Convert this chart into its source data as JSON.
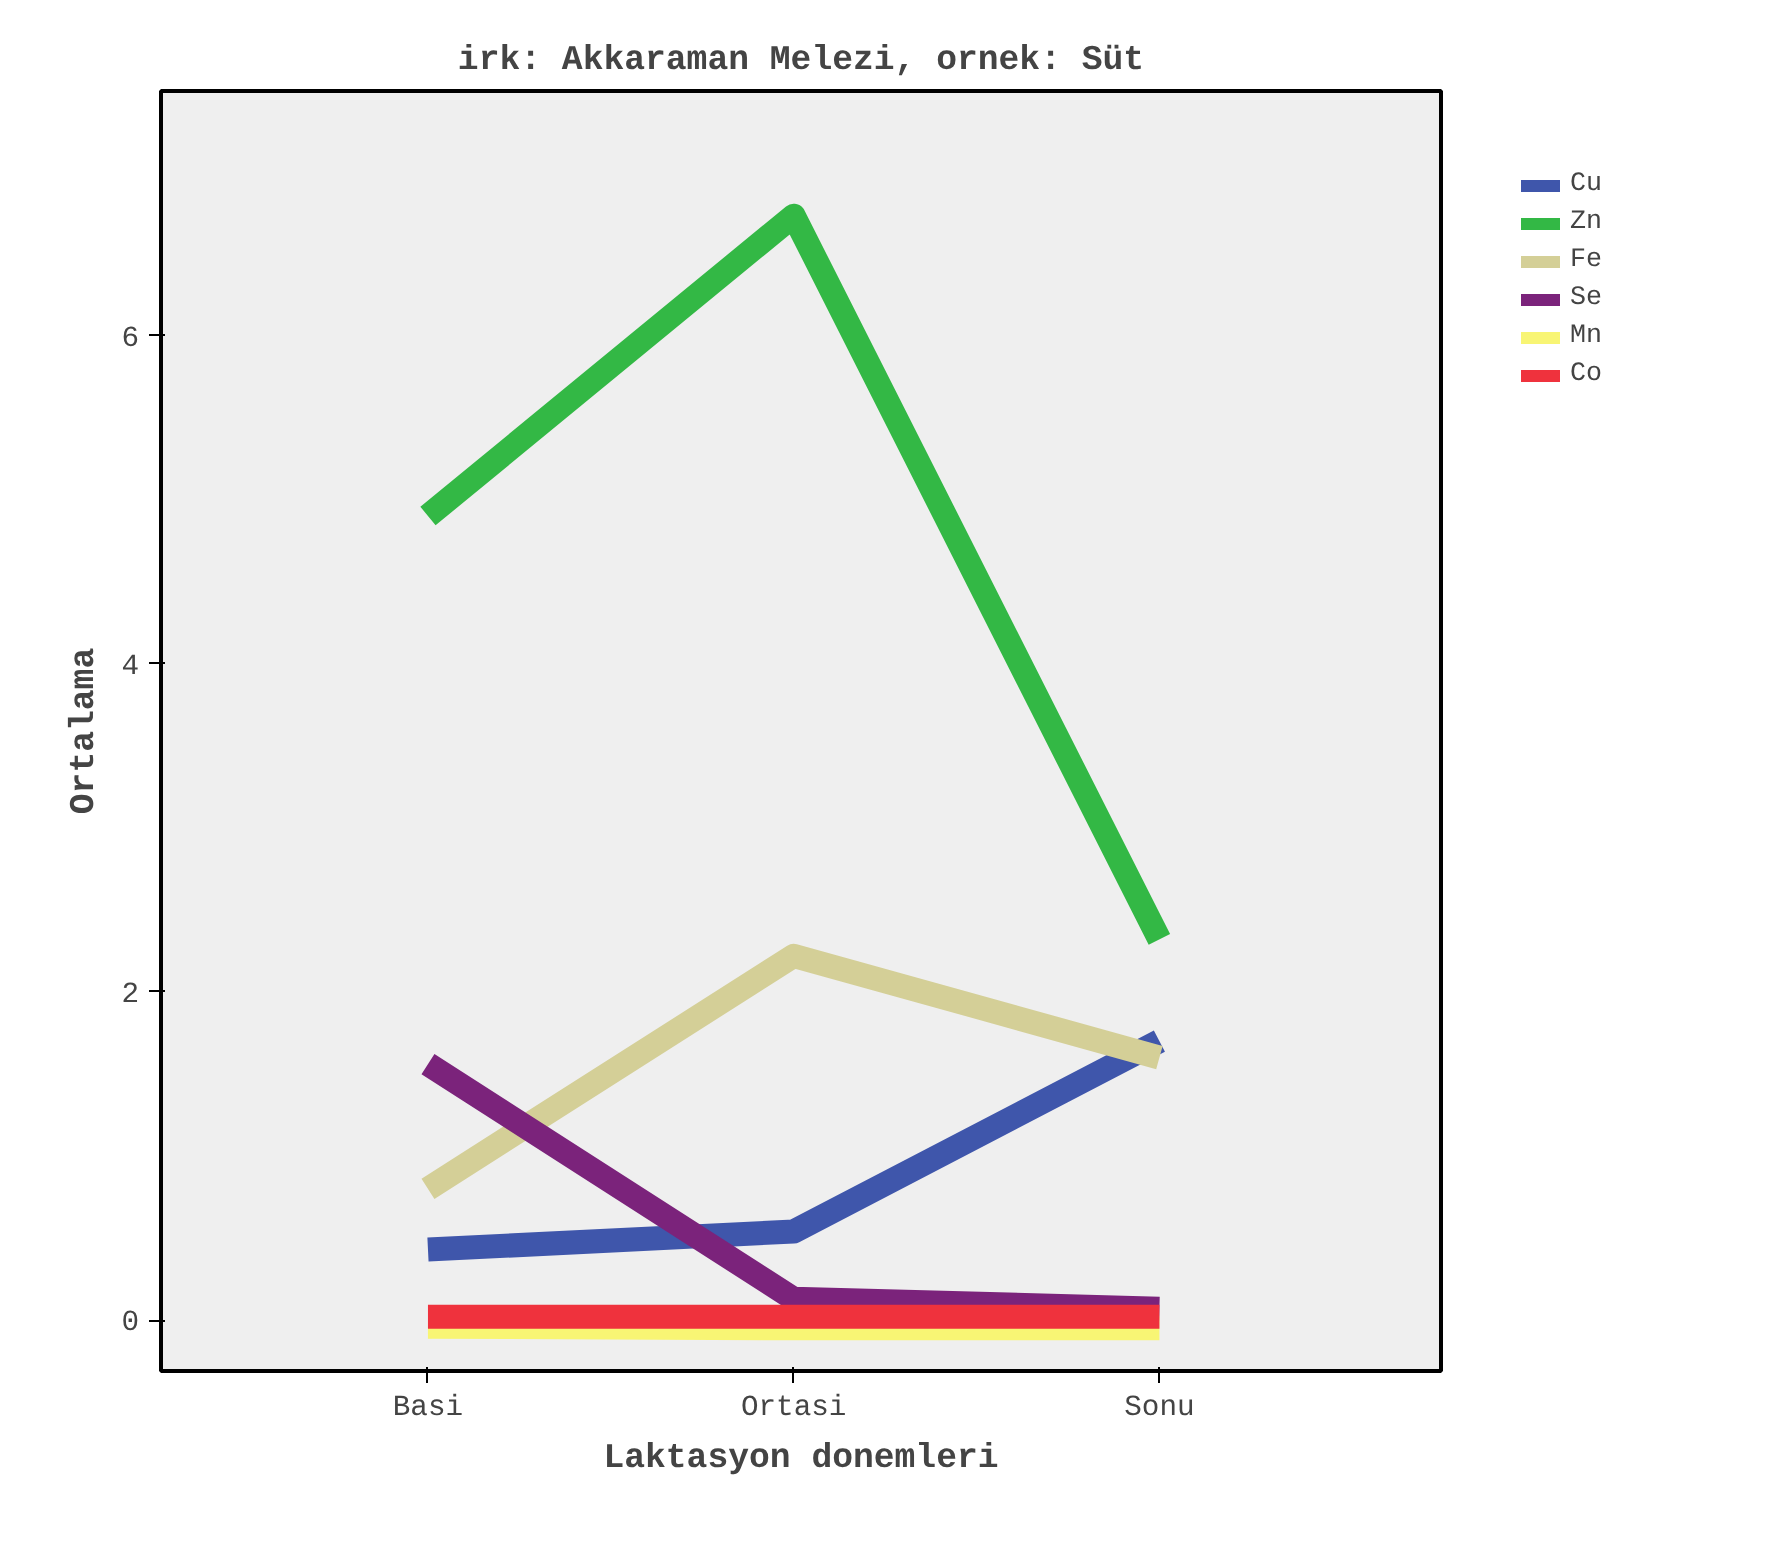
{
  "chart_data": {
    "type": "line",
    "title": "irk: Akkaraman Melezi, ornek: Süt",
    "xlabel": "Laktasyon donemleri",
    "ylabel": "Ortalama",
    "categories": [
      "Basi",
      "Ortasi",
      "Sonu"
    ],
    "series": [
      {
        "name": "Cu",
        "color": "#3f56ab",
        "values": [
          0.43,
          0.54,
          1.7
        ]
      },
      {
        "name": "Zn",
        "color": "#33b845",
        "values": [
          4.9,
          6.73,
          2.32
        ]
      },
      {
        "name": "Fe",
        "color": "#d4cf97",
        "values": [
          0.8,
          2.22,
          1.6
        ]
      },
      {
        "name": "Se",
        "color": "#7b237b",
        "values": [
          1.56,
          0.13,
          0.07
        ]
      },
      {
        "name": "Mn",
        "color": "#f8f574",
        "values": [
          -0.04,
          -0.05,
          -0.05
        ]
      },
      {
        "name": "Co",
        "color": "#ef323d",
        "values": [
          0.02,
          0.02,
          0.02
        ]
      }
    ],
    "ylim": [
      -0.31,
      7.49
    ],
    "yticks": [
      0,
      2,
      4,
      6
    ],
    "grid": false,
    "legend": "top right",
    "marker": "none",
    "line_style": "solid"
  }
}
